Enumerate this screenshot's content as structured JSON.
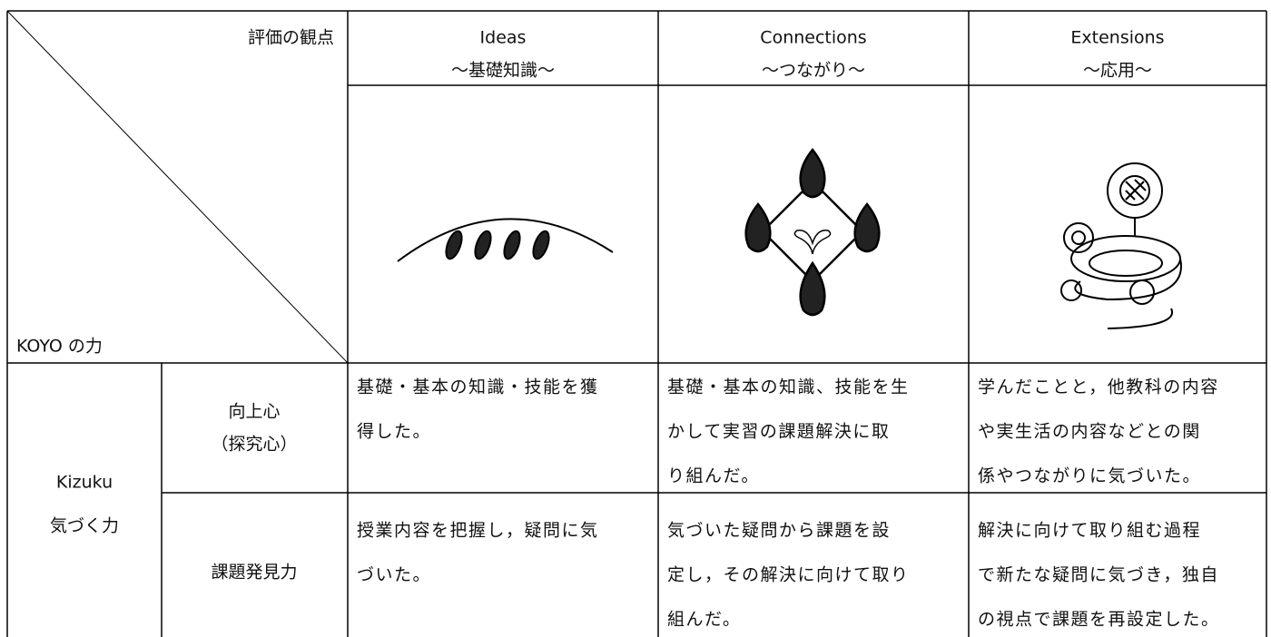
{
  "header": {
    "criteria_label": "評価の観点",
    "ability_label": "KOYO の力",
    "columns": [
      {
        "title": "Ideas",
        "subtitle": "～基礎知識～"
      },
      {
        "title": "Connections",
        "subtitle": "～つながり～"
      },
      {
        "title": "Extensions",
        "subtitle": "～応用～"
      }
    ]
  },
  "group": {
    "name": "Kizuku",
    "name_ja": "気づく力"
  },
  "rows": [
    {
      "label": [
        "向上心",
        "（探究心）"
      ],
      "cells": [
        [
          "基礎・基本の知識・技能を獲",
          "得した。"
        ],
        [
          "基礎・基本の知識、技能を生",
          "かして実習の課題解決に取",
          "り組んだ。"
        ],
        [
          "学んだことと，他教科の内容",
          "や実生活の内容などとの関",
          "係やつながりに気づいた。"
        ]
      ]
    },
    {
      "label": [
        "課題発見力"
      ],
      "cells": [
        [
          "授業内容を把握し，疑問に気",
          "づいた。"
        ],
        [
          "気づいた疑問から課題を設",
          "定し，その解決に向けて取り",
          "組んだ。"
        ],
        [
          "解決に向けて取り組む過程",
          "で新たな疑問に気づき，独自",
          "の視点で課題を再設定した。"
        ]
      ]
    }
  ]
}
